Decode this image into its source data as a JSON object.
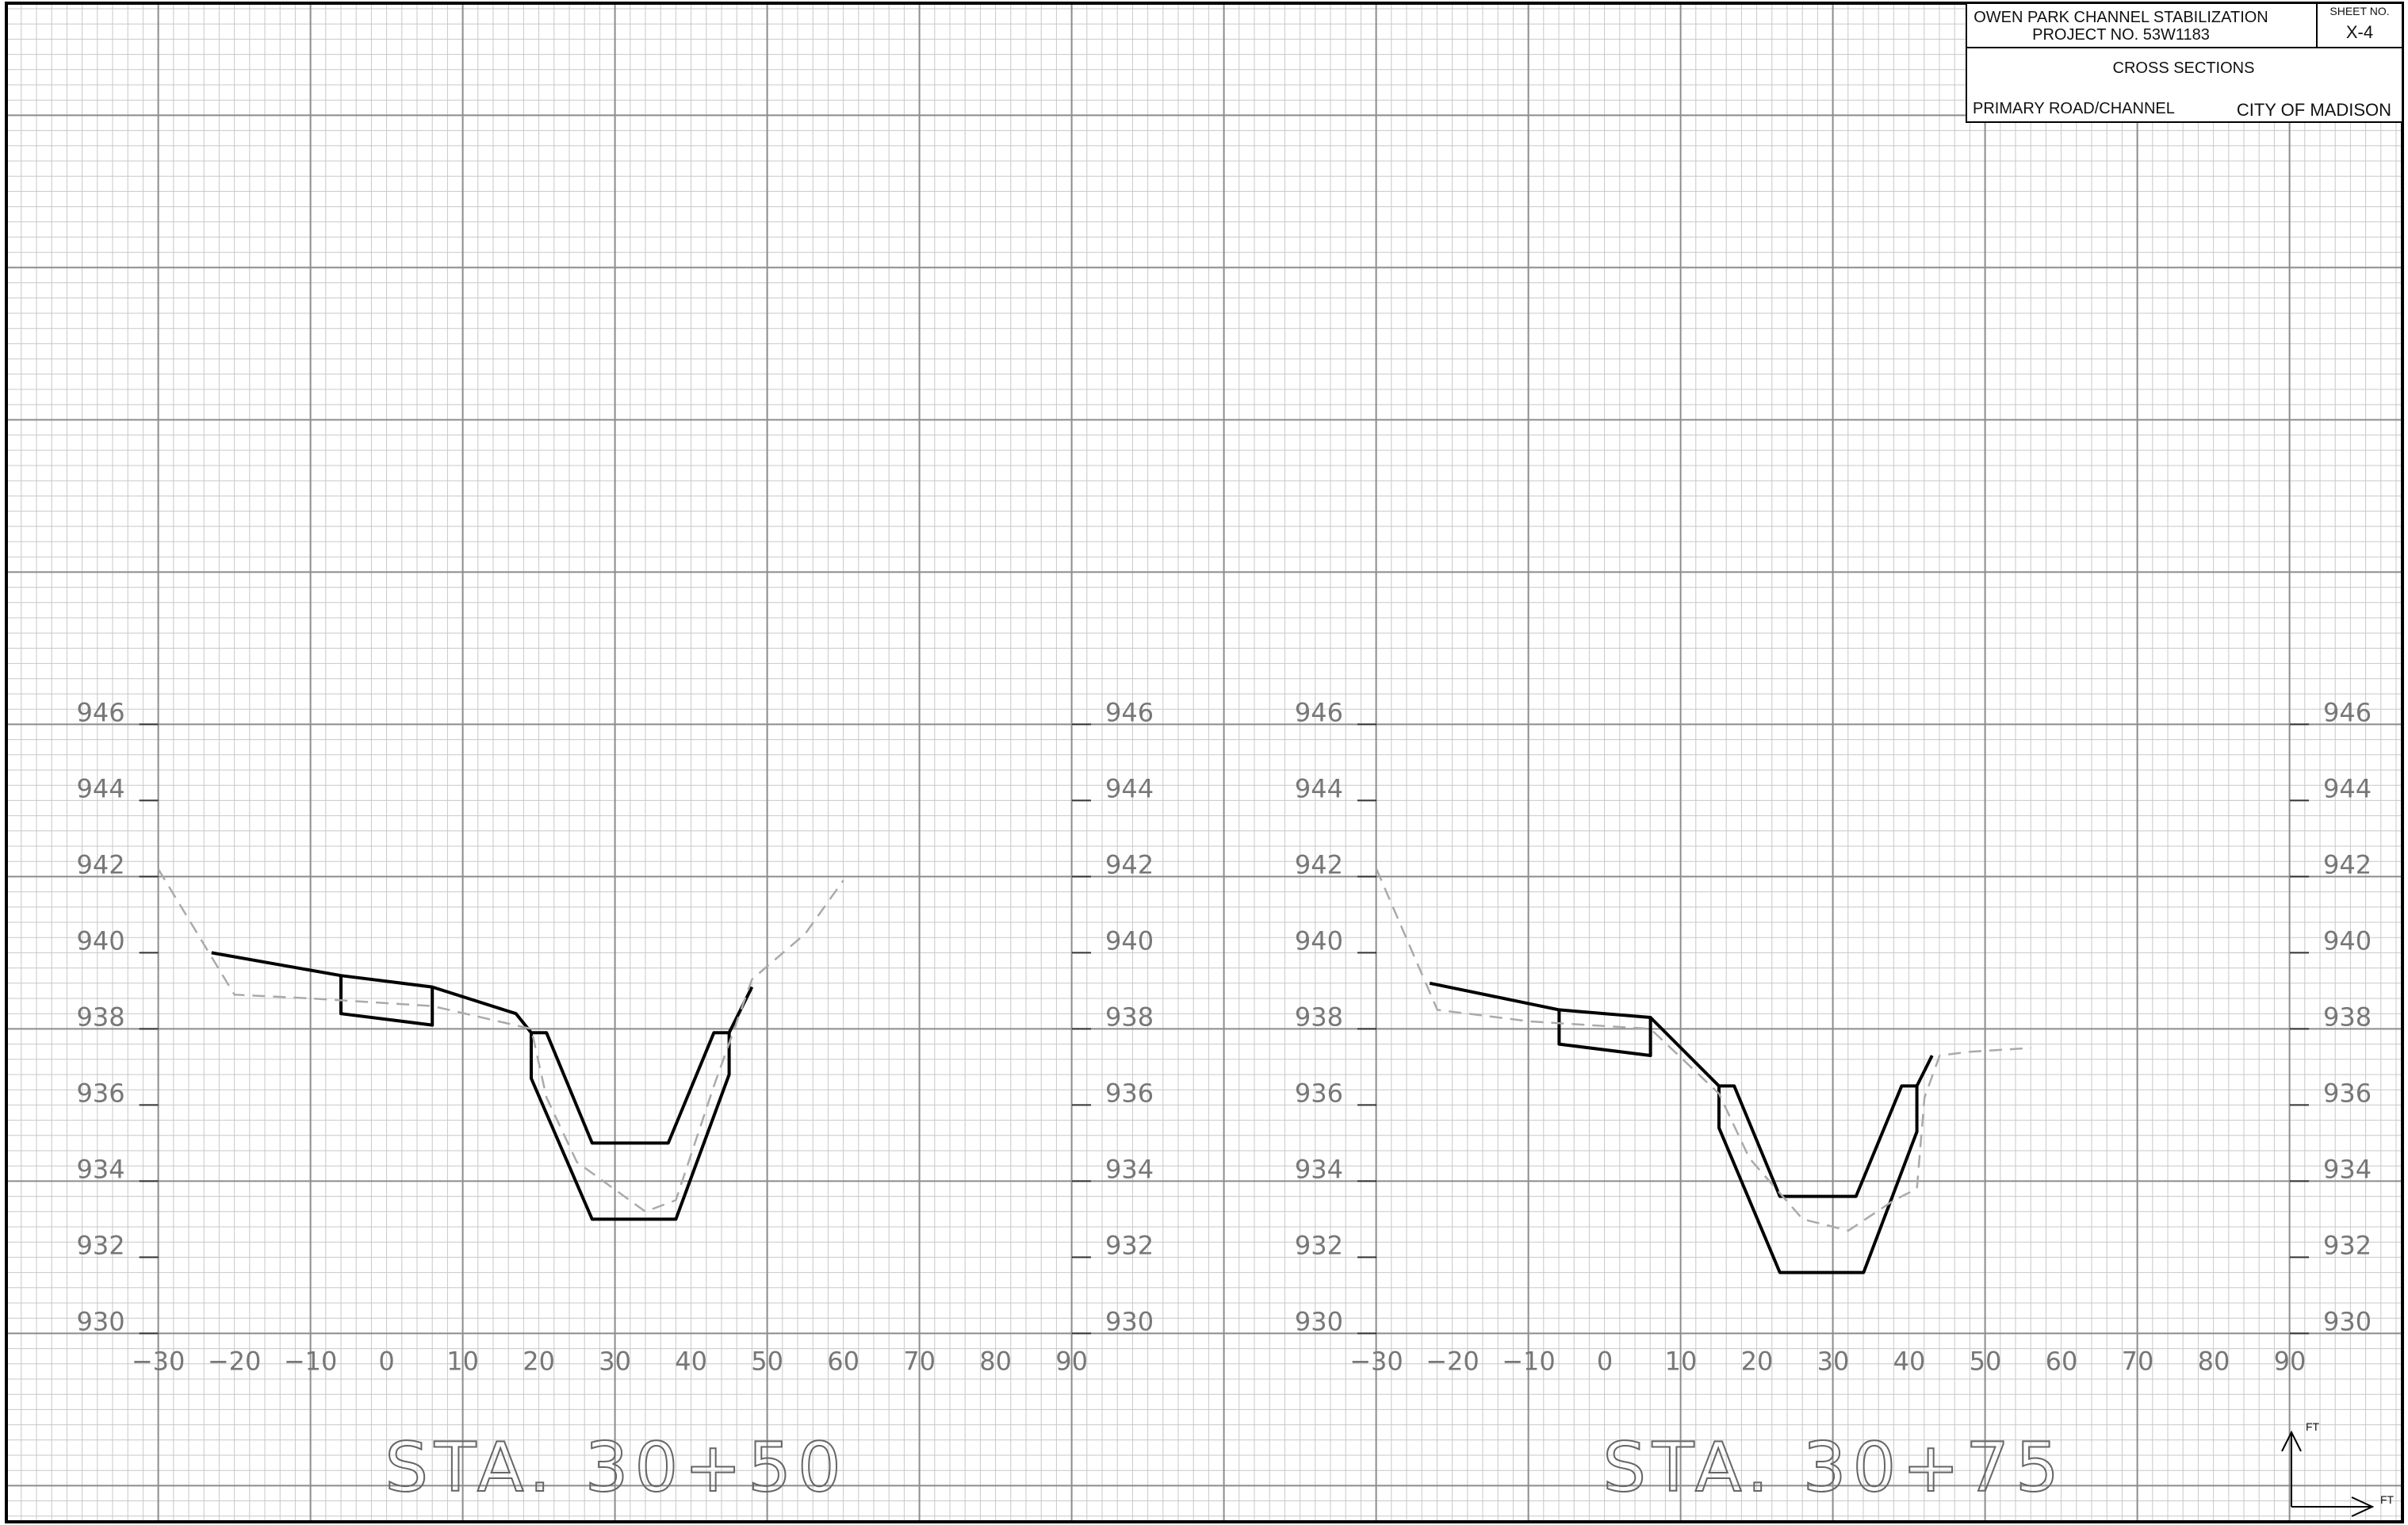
{
  "title_block": {
    "project_line1": "OWEN PARK CHANNEL STABILIZATION",
    "project_line2": "PROJECT NO. 53W1183",
    "sheet_no_label": "SHEET NO.",
    "sheet_no": "X-4",
    "sheet_title": "CROSS SECTIONS",
    "category": "PRIMARY ROAD/CHANNEL",
    "agency": "CITY OF MADISON"
  },
  "axes": {
    "y_ticks": [
      "930",
      "932",
      "934",
      "936",
      "938",
      "940",
      "942",
      "944",
      "946"
    ],
    "x_ticks": [
      "−30",
      "−20",
      "−10",
      "0",
      "10",
      "20",
      "30",
      "40",
      "50",
      "60",
      "70",
      "80",
      "90"
    ]
  },
  "north_arrow": {
    "up_label": "FT",
    "right_label": "FT"
  },
  "colors": {
    "grid_minor": "#c8c8c8",
    "grid_major": "#8c8c8c",
    "proposed": "#000000",
    "existing": "#aaaaaa"
  },
  "chart_data": [
    {
      "type": "cross-section",
      "title": "STA. 30+50",
      "xlim": [
        -30,
        90
      ],
      "ylim": [
        930,
        946
      ],
      "series": [
        {
          "style": "proposed",
          "points": [
            [
              -23,
              940.0
            ],
            [
              -6,
              939.4
            ],
            [
              6,
              939.1
            ],
            [
              17,
              938.4
            ],
            [
              19,
              937.9
            ],
            [
              21,
              937.9
            ],
            [
              27,
              935.0
            ],
            [
              37,
              935.0
            ],
            [
              43,
              937.9
            ],
            [
              45,
              937.9
            ],
            [
              48,
              939.1
            ]
          ]
        },
        {
          "style": "proposed",
          "points": [
            [
              -6,
              939.4
            ],
            [
              -6,
              938.4
            ],
            [
              6,
              938.1
            ],
            [
              6,
              939.1
            ]
          ]
        },
        {
          "style": "proposed",
          "points": [
            [
              19,
              937.9
            ],
            [
              19,
              936.7
            ],
            [
              27,
              933.0
            ],
            [
              38,
              933.0
            ],
            [
              45,
              936.8
            ],
            [
              45,
              937.9
            ]
          ]
        },
        {
          "style": "existing",
          "points": [
            [
              -30,
              942.2
            ],
            [
              -20,
              938.9
            ],
            [
              -10,
              938.8
            ],
            [
              6,
              938.6
            ],
            [
              19,
              938.0
            ],
            [
              21,
              936.2
            ],
            [
              25,
              934.5
            ],
            [
              34,
              933.2
            ],
            [
              38,
              933.5
            ],
            [
              43,
              936.5
            ],
            [
              48,
              939.3
            ],
            [
              55,
              940.5
            ],
            [
              60,
              941.9
            ]
          ]
        }
      ]
    },
    {
      "type": "cross-section",
      "title": "STA. 30+75",
      "xlim": [
        -30,
        90
      ],
      "ylim": [
        930,
        946
      ],
      "series": [
        {
          "style": "proposed",
          "points": [
            [
              -23,
              939.2
            ],
            [
              -6,
              938.5
            ],
            [
              6,
              938.3
            ],
            [
              15,
              936.5
            ],
            [
              17,
              936.5
            ],
            [
              23,
              933.6
            ],
            [
              33,
              933.6
            ],
            [
              39,
              936.5
            ],
            [
              41,
              936.5
            ],
            [
              43,
              937.3
            ]
          ]
        },
        {
          "style": "proposed",
          "points": [
            [
              -6,
              938.5
            ],
            [
              -6,
              937.6
            ],
            [
              6,
              937.3
            ],
            [
              6,
              938.3
            ]
          ]
        },
        {
          "style": "proposed",
          "points": [
            [
              15,
              936.5
            ],
            [
              15,
              935.4
            ],
            [
              23,
              931.6
            ],
            [
              34,
              931.6
            ],
            [
              41,
              935.3
            ],
            [
              41,
              936.5
            ]
          ]
        },
        {
          "style": "existing",
          "points": [
            [
              -30,
              942.2
            ],
            [
              -22,
              938.5
            ],
            [
              -10,
              938.2
            ],
            [
              6,
              938.0
            ],
            [
              15,
              936.3
            ],
            [
              19,
              934.6
            ],
            [
              26,
              933.0
            ],
            [
              32,
              932.7
            ],
            [
              38,
              933.5
            ],
            [
              41,
              933.8
            ],
            [
              42,
              936.2
            ],
            [
              44,
              937.3
            ],
            [
              48,
              937.4
            ],
            [
              56,
              937.5
            ]
          ]
        }
      ]
    }
  ]
}
